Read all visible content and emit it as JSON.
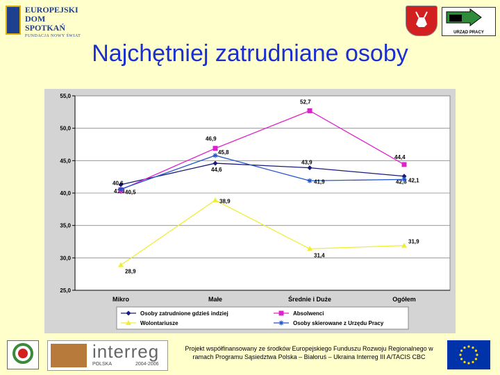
{
  "header": {
    "logo_left_line1": "EUROPEJSKI",
    "logo_left_line2": "DOM SPOTKAŃ",
    "logo_left_sub": "FUNDACJA NOWY ŚWIAT",
    "up_logo_label": "URZĄD PRACY",
    "title": "Najchętniej zatrudniane osoby"
  },
  "chart_data": {
    "type": "line",
    "categories": [
      "Mikro",
      "Małe",
      "Średnie i Duże",
      "Ogółem"
    ],
    "ylim": [
      25,
      55
    ],
    "yticks": [
      "25,0",
      "30,0",
      "35,0",
      "40,0",
      "45,0",
      "50,0",
      "55,0"
    ],
    "grid": true,
    "legend_position": "bottom",
    "series": [
      {
        "name": "Osoby zatrudnione gdzieś indziej",
        "color": "#1a1a7a",
        "marker": "diamond",
        "values": [
          41.3,
          44.6,
          43.9,
          42.6
        ],
        "labels": [
          "41,3",
          "44,6",
          "43,9",
          "42,6"
        ]
      },
      {
        "name": "Absolwenci",
        "color": "#dd22cc",
        "marker": "square",
        "values": [
          40.5,
          46.9,
          52.7,
          44.4
        ],
        "labels": [
          "40,5",
          "46,9",
          "52,7",
          "44,4"
        ]
      },
      {
        "name": "Wolontariusze",
        "color": "#eeee33",
        "marker": "triangle",
        "values": [
          28.9,
          38.9,
          31.4,
          31.9
        ],
        "labels": [
          "28,9",
          "38,9",
          "31,4",
          "31,9"
        ]
      },
      {
        "name": "Osoby skierowane z Urzędu Pracy",
        "color": "#2255cc",
        "marker": "star",
        "values": [
          40.6,
          45.8,
          41.9,
          42.1
        ],
        "labels": [
          "40,6",
          "45,8",
          "41,9",
          "42,1"
        ]
      }
    ]
  },
  "footer": {
    "interreg_word": "interreg",
    "interreg_country": "POLSKA",
    "interreg_years": "2004-2006",
    "text": "Projekt współfinansowany ze środków Europejskiego Funduszu Rozwoju Regionalnego w ramach Programu Sąsiedztwa Polska – Białoruś – Ukraina Interreg III A/TACIS CBC"
  },
  "colors": {
    "background": "#ffffcc",
    "title": "#1a2fd0",
    "chart_bg": "#d4d4d4",
    "plot_bg": "#ffffff"
  }
}
